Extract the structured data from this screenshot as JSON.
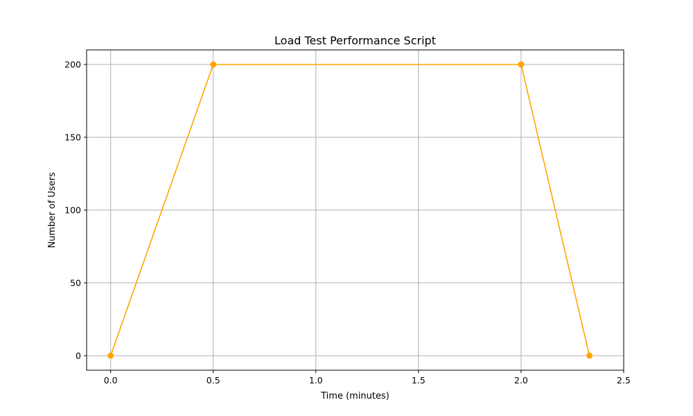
{
  "chart_data": {
    "type": "line",
    "title": "Load Test Performance Script",
    "xlabel": "Time (minutes)",
    "ylabel": "Number of Users",
    "xlim": [
      -0.117,
      2.5
    ],
    "ylim": [
      -10,
      210
    ],
    "x_ticks": [
      0.0,
      0.5,
      1.0,
      1.5,
      2.0,
      2.5
    ],
    "x_tick_labels": [
      "0.0",
      "0.5",
      "1.0",
      "1.5",
      "2.0",
      "2.5"
    ],
    "y_ticks": [
      0,
      50,
      100,
      150,
      200
    ],
    "y_tick_labels": [
      "0",
      "50",
      "100",
      "150",
      "200"
    ],
    "grid": true,
    "legend": false,
    "series": [
      {
        "color": "#ffa500",
        "marker": "circle",
        "x": [
          0.0,
          0.5,
          2.0,
          2.333
        ],
        "y": [
          0,
          200,
          200,
          0
        ]
      }
    ]
  }
}
